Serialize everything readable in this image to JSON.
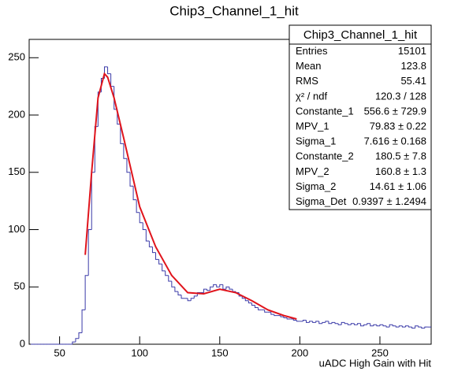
{
  "chart_data": {
    "type": "histogram",
    "title": "Chip3_Channel_1_hit",
    "x_label": "uADC High Gain with Hit",
    "color": "#3a3aa8",
    "bins": [
      32,
      34,
      36,
      38,
      40,
      42,
      44,
      46,
      48,
      50,
      52,
      54,
      56,
      58,
      60,
      62,
      64,
      66,
      68,
      70,
      72,
      74,
      76,
      78,
      80,
      82,
      84,
      86,
      88,
      90,
      92,
      94,
      96,
      98,
      100,
      102,
      104,
      106,
      108,
      110,
      112,
      114,
      116,
      118,
      120,
      122,
      124,
      126,
      128,
      130,
      132,
      134,
      136,
      138,
      140,
      142,
      144,
      146,
      148,
      150,
      152,
      154,
      156,
      158,
      160,
      162,
      164,
      166,
      168,
      170,
      172,
      174,
      176,
      178,
      180,
      182,
      184,
      186,
      188,
      190,
      192,
      194,
      196,
      198,
      200,
      202,
      204,
      206,
      208,
      210,
      212,
      214,
      216,
      218,
      220,
      222,
      224,
      226,
      228,
      230,
      232,
      234,
      236,
      238,
      240,
      242,
      244,
      246,
      248,
      250,
      252,
      254,
      256,
      258,
      260,
      262,
      264,
      266,
      268,
      270,
      272,
      274,
      276,
      278,
      280,
      282
    ],
    "values": [
      0,
      0,
      0,
      0,
      0,
      0,
      0,
      0,
      0,
      0,
      0,
      0,
      0,
      2,
      5,
      10,
      30,
      60,
      100,
      150,
      190,
      220,
      232,
      242,
      236,
      225,
      205,
      192,
      175,
      162,
      150,
      138,
      126,
      115,
      106,
      100,
      90,
      85,
      80,
      74,
      70,
      64,
      60,
      55,
      50,
      46,
      43,
      40,
      40,
      38,
      40,
      42,
      45,
      45,
      48,
      47,
      50,
      52,
      50,
      52,
      48,
      50,
      48,
      46,
      45,
      42,
      40,
      38,
      36,
      34,
      32,
      30,
      30,
      28,
      28,
      26,
      25,
      25,
      24,
      23,
      22,
      22,
      21,
      20,
      20,
      21,
      19,
      20,
      19,
      20,
      18,
      19,
      20,
      18,
      19,
      18,
      17,
      19,
      18,
      17,
      18,
      17,
      18,
      16,
      17,
      18,
      16,
      17,
      16,
      17,
      16,
      15,
      17,
      16,
      15,
      16,
      15,
      16,
      15,
      14,
      16,
      15,
      14,
      15,
      15
    ],
    "fit": {
      "color": "#e0141c",
      "x": [
        66,
        70,
        74,
        78,
        80,
        84,
        90,
        100,
        110,
        120,
        130,
        140,
        150,
        160,
        170,
        180,
        190,
        198
      ],
      "values": [
        78,
        150,
        215,
        236,
        233,
        215,
        180,
        120,
        85,
        60,
        45,
        44,
        48,
        45,
        38,
        30,
        25,
        22
      ]
    },
    "xlim": [
      31,
      282
    ],
    "ylim": [
      0,
      266
    ],
    "xticks": [
      50,
      100,
      150,
      200,
      250
    ],
    "yticks": [
      0,
      50,
      100,
      150,
      200,
      250
    ],
    "stats": {
      "title": "Chip3_Channel_1_hit",
      "rows": [
        [
          "Entries",
          "15101"
        ],
        [
          "Mean",
          "123.8"
        ],
        [
          "RMS",
          "55.41"
        ],
        [
          "χ² / ndf",
          "120.3 / 128"
        ],
        [
          "Constante_1",
          "556.6 ± 729.9"
        ],
        [
          "MPV_1",
          "79.83 ± 0.22"
        ],
        [
          "Sigma_1",
          "7.616 ± 0.168"
        ],
        [
          "Constante_2",
          "180.5 ± 7.8"
        ],
        [
          "MPV_2",
          "160.8 ± 1.3"
        ],
        [
          "Sigma_2",
          "14.61 ± 1.06"
        ],
        [
          "Sigma_Det",
          "0.9397 ± 1.2494"
        ]
      ]
    }
  }
}
